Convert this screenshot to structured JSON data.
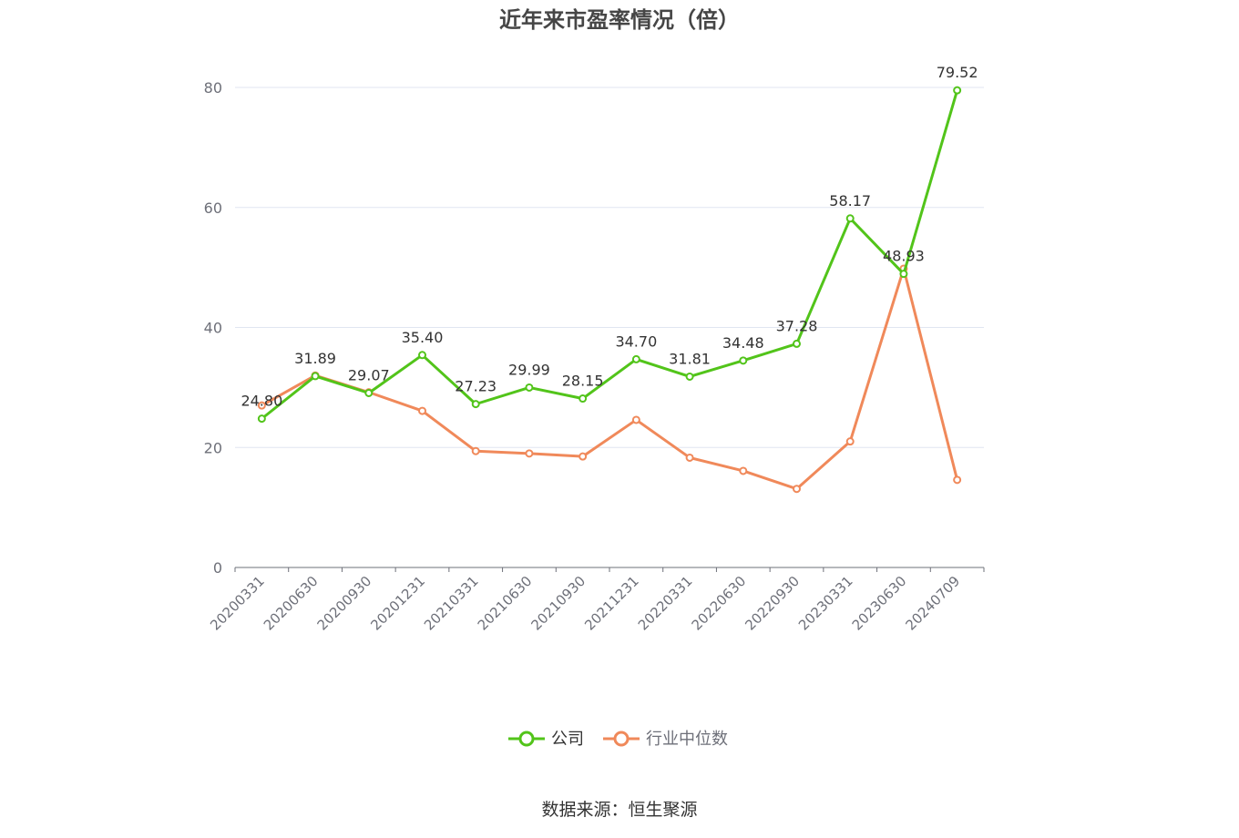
{
  "chart_data": {
    "type": "line",
    "title": "近年来市盈率情况（倍）",
    "categories": [
      "20200331",
      "20200630",
      "20200930",
      "20201231",
      "20210331",
      "20210630",
      "20210930",
      "20211231",
      "20220331",
      "20220630",
      "20220930",
      "20230331",
      "20230630",
      "20240709"
    ],
    "ylim": [
      0,
      80
    ],
    "yticks": [
      0,
      20,
      40,
      60,
      80
    ],
    "grid": true,
    "legend_position": "bottom",
    "series": [
      {
        "name": "公司",
        "color": "#52c41a",
        "values": [
          24.8,
          31.89,
          29.07,
          35.4,
          27.23,
          29.99,
          28.15,
          34.7,
          31.81,
          34.48,
          37.28,
          58.17,
          48.93,
          79.52
        ],
        "labels": [
          "24.80",
          "31.89",
          "29.07",
          "35.40",
          "27.23",
          "29.99",
          "28.15",
          "34.70",
          "31.81",
          "34.48",
          "37.28",
          "58.17",
          "48.93",
          "79.52"
        ]
      },
      {
        "name": "行业中位数",
        "color": "#f0895a",
        "values": [
          27.0,
          32.0,
          29.2,
          26.1,
          19.4,
          19.0,
          18.5,
          24.6,
          18.3,
          16.1,
          13.1,
          21.0,
          49.8,
          14.6
        ]
      }
    ]
  },
  "source_text": "数据来源：恒生聚源"
}
